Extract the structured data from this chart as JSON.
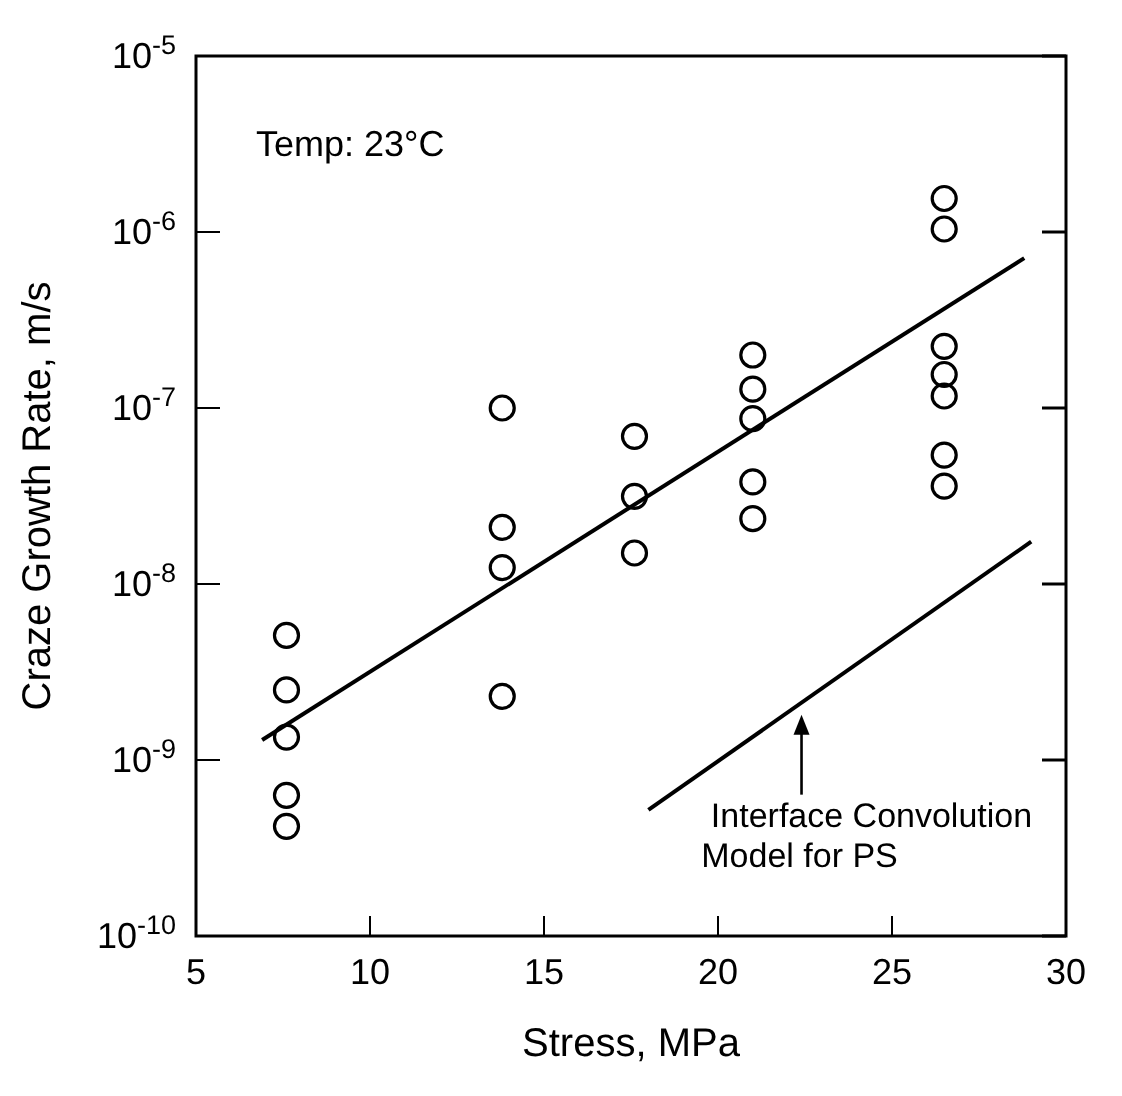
{
  "chart_data": {
    "type": "scatter",
    "xlabel": "Stress, MPa",
    "ylabel": "Craze Growth Rate, m/s",
    "log": "y",
    "grid": false,
    "legend": false,
    "marker": "circle",
    "xlim": [
      5,
      30
    ],
    "xticks": [
      5,
      10,
      15,
      20,
      25,
      30
    ],
    "ylim": [
      1e-10,
      1e-05
    ],
    "yticks": [
      {
        "value": 1e-10,
        "label": "10$^{-10}$"
      },
      {
        "value": 1e-09,
        "label": "10$^{-9}$"
      },
      {
        "value": 1e-08,
        "label": "10$^{-8}$"
      },
      {
        "value": 1e-07,
        "label": "10$^{-7}$"
      },
      {
        "value": 1e-06,
        "label": "10$^{-6}$"
      },
      {
        "value": 1e-05,
        "label": "10$^{-5}$"
      }
    ],
    "series": [
      {
        "color": "#000000",
        "x": [
          7.6,
          7.6,
          7.6,
          7.6,
          7.6,
          13.8,
          13.8,
          13.8,
          13.8,
          17.6,
          17.6,
          17.6,
          21,
          21,
          21,
          21,
          21,
          26.5,
          26.5,
          26.5,
          26.5,
          26.5,
          26.5,
          26.5
        ],
        "values": [
          5.1e-09,
          2.5e-09,
          1.35e-09,
          6.3e-10,
          4.2e-10,
          1e-07,
          2.1e-08,
          1.24e-08,
          2.3e-09,
          6.9e-08,
          3.15e-08,
          1.5e-08,
          2e-07,
          1.28e-07,
          8.7e-08,
          3.8e-08,
          2.35e-08,
          1.55e-06,
          1.04e-06,
          2.24e-07,
          1.55e-07,
          1.17e-07,
          5.4e-08,
          3.6e-08
        ]
      },
      {
        "type": "line",
        "marker": "none",
        "color": "#000000",
        "x": [
          6.9,
          28.8
        ],
        "values": [
          1.3e-09,
          7.1e-07
        ]
      },
      {
        "type": "line",
        "marker": "none",
        "color": "#000000",
        "x": [
          18,
          29
        ],
        "values": [
          5.2e-10,
          1.74e-08
        ]
      }
    ],
    "annotations": [
      "Temp: 23°C",
      "Interface Convolution\nModel for PS"
    ]
  }
}
